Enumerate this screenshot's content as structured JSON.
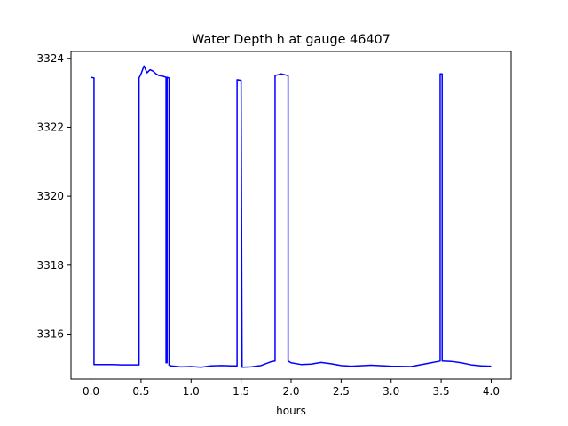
{
  "chart_data": {
    "type": "line",
    "title": "Water Depth h at gauge 46407",
    "xlabel": "hours",
    "ylabel": "",
    "xlim": [
      -0.2,
      4.2
    ],
    "ylim": [
      3314.7,
      3324.2
    ],
    "grid": false,
    "line_color": "#0000ff",
    "x_ticks": [
      {
        "value": 0.0,
        "label": "0.0"
      },
      {
        "value": 0.5,
        "label": "0.5"
      },
      {
        "value": 1.0,
        "label": "1.0"
      },
      {
        "value": 1.5,
        "label": "1.5"
      },
      {
        "value": 2.0,
        "label": "2.0"
      },
      {
        "value": 2.5,
        "label": "2.5"
      },
      {
        "value": 3.0,
        "label": "3.0"
      },
      {
        "value": 3.5,
        "label": "3.5"
      },
      {
        "value": 4.0,
        "label": "4.0"
      }
    ],
    "y_ticks": [
      {
        "value": 3316,
        "label": "3316"
      },
      {
        "value": 3318,
        "label": "3318"
      },
      {
        "value": 3320,
        "label": "3320"
      },
      {
        "value": 3322,
        "label": "3322"
      },
      {
        "value": 3324,
        "label": "3324"
      }
    ],
    "series": [
      {
        "x": [
          0.0,
          0.03,
          0.03,
          0.1,
          0.2,
          0.3,
          0.4,
          0.48,
          0.48,
          0.5,
          0.53,
          0.56,
          0.59,
          0.62,
          0.65,
          0.68,
          0.72,
          0.75,
          0.75,
          0.76,
          0.76,
          0.78,
          0.78,
          0.8,
          0.9,
          1.0,
          1.1,
          1.2,
          1.3,
          1.4,
          1.45,
          1.46,
          1.46,
          1.5,
          1.51,
          1.51,
          1.6,
          1.7,
          1.8,
          1.84,
          1.84,
          1.9,
          1.97,
          1.97,
          2.0,
          2.1,
          2.2,
          2.3,
          2.4,
          2.5,
          2.6,
          2.8,
          3.0,
          3.2,
          3.4,
          3.49,
          3.49,
          3.51,
          3.51,
          3.6,
          3.7,
          3.8,
          3.9,
          4.0
        ],
        "y": [
          3323.45,
          3323.43,
          3315.12,
          3315.12,
          3315.12,
          3315.11,
          3315.11,
          3315.11,
          3323.43,
          3323.55,
          3323.78,
          3323.58,
          3323.67,
          3323.63,
          3323.55,
          3323.5,
          3323.48,
          3323.45,
          3315.17,
          3315.17,
          3323.45,
          3323.43,
          3315.1,
          3315.08,
          3315.05,
          3315.06,
          3315.04,
          3315.08,
          3315.09,
          3315.08,
          3315.08,
          3315.08,
          3323.38,
          3323.36,
          3315.05,
          3315.04,
          3315.05,
          3315.09,
          3315.2,
          3315.22,
          3323.5,
          3323.55,
          3323.5,
          3315.22,
          3315.17,
          3315.12,
          3315.13,
          3315.18,
          3315.14,
          3315.09,
          3315.07,
          3315.1,
          3315.07,
          3315.06,
          3315.17,
          3315.22,
          3323.55,
          3323.55,
          3315.22,
          3315.21,
          3315.17,
          3315.11,
          3315.08,
          3315.07
        ]
      }
    ]
  }
}
